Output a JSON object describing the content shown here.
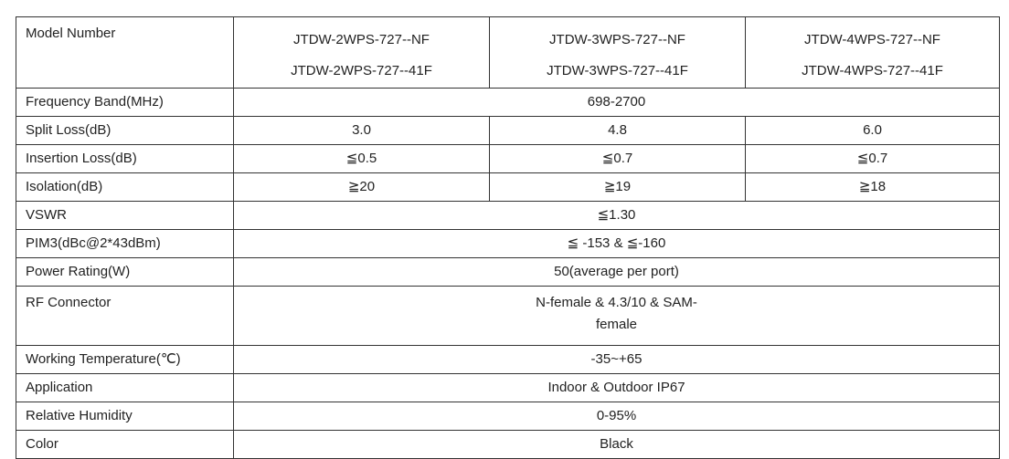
{
  "table": {
    "header": {
      "label": "Model Number",
      "models": [
        [
          "JTDW-2WPS-727--NF",
          "JTDW-2WPS-727--41F"
        ],
        [
          "JTDW-3WPS-727--NF",
          "JTDW-3WPS-727--41F"
        ],
        [
          "JTDW-4WPS-727--NF",
          "JTDW-4WPS-727--41F"
        ]
      ]
    },
    "rows": [
      {
        "label": "Frequency Band(MHz)",
        "values": [
          [
            "698-2700"
          ]
        ]
      },
      {
        "label": "Split Loss(dB)",
        "values": [
          [
            "3.0"
          ],
          [
            "4.8"
          ],
          [
            "6.0"
          ]
        ]
      },
      {
        "label": "Insertion Loss(dB)",
        "values": [
          [
            "≦0.5"
          ],
          [
            "≦0.7"
          ],
          [
            "≦0.7"
          ]
        ]
      },
      {
        "label": "Isolation(dB)",
        "values": [
          [
            "≧20"
          ],
          [
            "≧19"
          ],
          [
            "≧18"
          ]
        ]
      },
      {
        "label": "VSWR",
        "values": [
          [
            "≦1.30"
          ]
        ]
      },
      {
        "label": "PIM3(dBc@2*43dBm)",
        "values": [
          [
            "≦  -153 &  ≦-160"
          ]
        ]
      },
      {
        "label": "Power Rating(W)",
        "values": [
          [
            "50(average per port)"
          ]
        ]
      },
      {
        "label": "RF Connector",
        "values": [
          [
            "N-female & 4.3/10 & SAM-",
            "female"
          ]
        ]
      },
      {
        "label": "Working Temperature(℃)",
        "values": [
          [
            "-35~+65"
          ]
        ]
      },
      {
        "label": "Application",
        "values": [
          [
            "Indoor & Outdoor IP67"
          ]
        ]
      },
      {
        "label": "Relative Humidity",
        "values": [
          [
            "0-95%"
          ]
        ]
      },
      {
        "label": "Color",
        "values": [
          [
            "Black"
          ]
        ]
      }
    ]
  }
}
